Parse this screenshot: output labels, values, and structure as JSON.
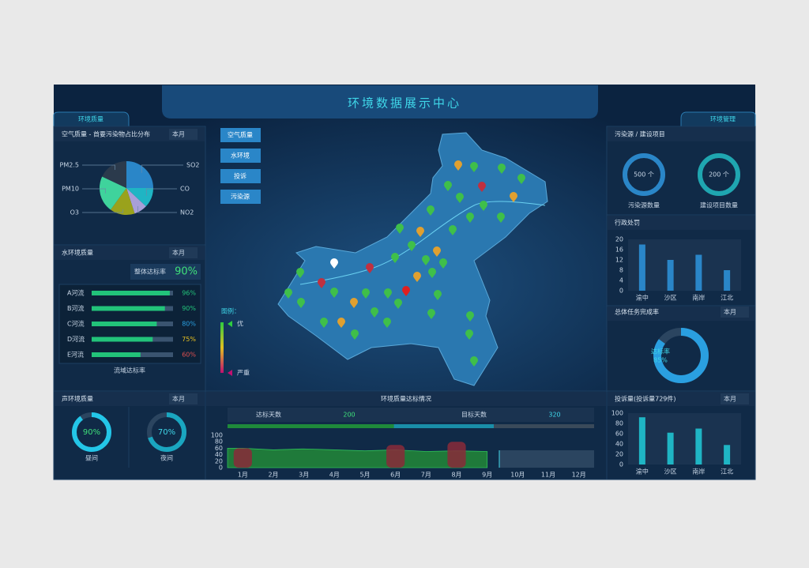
{
  "header": {
    "title": "环境数据展示中心",
    "left_tab": "环境质量",
    "right_tab": "环境管理"
  },
  "air_quality": {
    "title": "空气质量 - 首要污染物占比分布",
    "period": "本月",
    "type": "pie",
    "slices": [
      {
        "label": "SO2",
        "value": 25,
        "color": "#2a86c8"
      },
      {
        "label": "CO",
        "value": 12,
        "color": "#1fb5c4"
      },
      {
        "label": "NO2",
        "value": 8,
        "color": "#a89fd8"
      },
      {
        "label": "O3",
        "value": 15,
        "color": "#9aa21c"
      },
      {
        "label": "PM10",
        "value": 22,
        "color": "#3fd39c"
      },
      {
        "label": "PM2.5",
        "value": 18,
        "color": "#2b3a4c"
      }
    ]
  },
  "map": {
    "buttons": [
      "空气质量",
      "水环境",
      "投诉",
      "污染源"
    ],
    "legend_title": "图例：",
    "legend_good": "优",
    "legend_severe": "严重"
  },
  "water": {
    "title": "水环境质量",
    "period": "本月",
    "overall_label": "整体达标率",
    "overall_value": "90%",
    "rivers": [
      {
        "name": "A河流",
        "value": 96,
        "label": "96%",
        "color": "#22c37a"
      },
      {
        "name": "B河流",
        "value": 90,
        "label": "90%",
        "color": "#22c37a"
      },
      {
        "name": "C河流",
        "value": 80,
        "label": "80%",
        "color": "#2a9fe0"
      },
      {
        "name": "D河流",
        "value": 75,
        "label": "75%",
        "color": "#e8c020"
      },
      {
        "name": "E河流",
        "value": 60,
        "label": "60%",
        "color": "#e05050"
      }
    ],
    "footer": "流域达标率"
  },
  "noise": {
    "title": "声环境质量",
    "period": "本月",
    "gauges": [
      {
        "name": "昼间",
        "value": 90,
        "label": "90%",
        "color": "#23c6e8"
      },
      {
        "name": "夜间",
        "value": 70,
        "label": "70%",
        "color": "#1aa6c0"
      }
    ]
  },
  "sources": {
    "title": "污染源 / 建设项目",
    "items": [
      {
        "name": "污染源数量",
        "value": 500,
        "label": "500 个",
        "color": "#2a86c8"
      },
      {
        "name": "建设项目数量",
        "value": 200,
        "label": "200 个",
        "color": "#1fa6b0"
      }
    ]
  },
  "penalties": {
    "title": "行政处罚",
    "type": "bar",
    "categories": [
      "渝中",
      "沙区",
      "南岸",
      "江北"
    ],
    "values": [
      18,
      12,
      14,
      8
    ],
    "color": "#2a86c8",
    "ylim": [
      0,
      20
    ],
    "yticks": [
      0,
      4,
      8,
      12,
      16,
      20
    ]
  },
  "tasks": {
    "title": "总体任务完成率",
    "period": "本月",
    "gauge_label": "达标率",
    "value": 85,
    "value_label": "85%",
    "color": "#2a9fe0"
  },
  "compliance": {
    "title": "环境质量达标情况",
    "met_label": "达标天数",
    "met_days": 200,
    "target_label": "目标天数",
    "target_days": 320,
    "chart": {
      "type": "area",
      "categories": [
        "1月",
        "2月",
        "3月",
        "4月",
        "5月",
        "6月",
        "7月",
        "8月",
        "9月",
        "10月",
        "11月",
        "12月"
      ],
      "ylim": [
        0,
        100
      ],
      "yticks": [
        0,
        20,
        40,
        60,
        80,
        100
      ],
      "series": [
        {
          "color": "#1f7a3a",
          "values": [
            60,
            55,
            58,
            55,
            52,
            55,
            50,
            52,
            50,
            null,
            null,
            null
          ]
        },
        {
          "color": "#8a2a3a",
          "values": [
            60,
            null,
            null,
            null,
            null,
            70,
            null,
            80,
            null,
            null,
            null,
            null
          ]
        }
      ]
    }
  },
  "complaints": {
    "title": "投诉量(投诉量729件)",
    "period": "本月",
    "type": "bar",
    "categories": [
      "渝中",
      "沙区",
      "南岸",
      "江北"
    ],
    "values": [
      92,
      62,
      70,
      38
    ],
    "color": "#1fb5c4",
    "ylim": [
      0,
      100
    ],
    "yticks": [
      0,
      20,
      40,
      60,
      80,
      100
    ]
  }
}
